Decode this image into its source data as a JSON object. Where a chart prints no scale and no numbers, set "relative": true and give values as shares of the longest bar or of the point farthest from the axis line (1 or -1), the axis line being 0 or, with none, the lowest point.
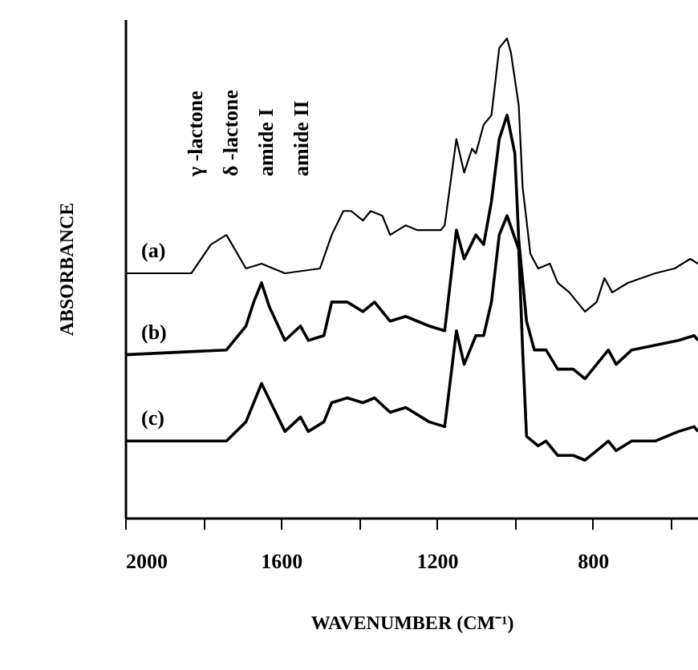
{
  "chart_data": {
    "type": "line",
    "xlabel": "WAVENUMBER (CM⁻¹)",
    "ylabel": "ABSORBANCE",
    "relative": true,
    "xlim": [
      2000,
      530
    ],
    "xticks": [
      2000,
      {
        "value": 1800,
        "label": null
      },
      1600,
      {
        "value": 1400,
        "label": null
      },
      1200,
      {
        "value": 1000,
        "label": null
      },
      800,
      {
        "value": 600,
        "label": null
      }
    ],
    "series": [
      {
        "name": "(a)",
        "color": "#000000",
        "x": [
          2000,
          1830,
          1780,
          1740,
          1690,
          1650,
          1590,
          1500,
          1470,
          1440,
          1420,
          1390,
          1370,
          1340,
          1320,
          1280,
          1250,
          1190,
          1180,
          1150,
          1130,
          1110,
          1100,
          1080,
          1060,
          1040,
          1020,
          1010,
          990,
          980,
          960,
          940,
          910,
          890,
          860,
          820,
          790,
          770,
          750,
          710,
          640,
          590,
          550,
          530
        ],
        "values": [
          0.51,
          0.51,
          0.57,
          0.59,
          0.52,
          0.53,
          0.51,
          0.52,
          0.59,
          0.64,
          0.64,
          0.62,
          0.64,
          0.63,
          0.59,
          0.61,
          0.6,
          0.6,
          0.61,
          0.79,
          0.72,
          0.77,
          0.76,
          0.82,
          0.84,
          0.98,
          1.0,
          0.97,
          0.86,
          0.69,
          0.55,
          0.52,
          0.53,
          0.49,
          0.47,
          0.43,
          0.45,
          0.5,
          0.47,
          0.49,
          0.51,
          0.52,
          0.54,
          0.53
        ]
      },
      {
        "name": "(b)",
        "color": "#000000",
        "x": [
          2000,
          1740,
          1690,
          1670,
          1650,
          1630,
          1590,
          1550,
          1530,
          1490,
          1470,
          1430,
          1390,
          1360,
          1320,
          1280,
          1220,
          1180,
          1150,
          1130,
          1100,
          1080,
          1060,
          1040,
          1020,
          1000,
          990,
          970,
          950,
          920,
          890,
          850,
          820,
          790,
          760,
          740,
          700,
          640,
          580,
          540,
          530
        ],
        "values": [
          0.34,
          0.35,
          0.4,
          0.45,
          0.49,
          0.44,
          0.37,
          0.4,
          0.37,
          0.38,
          0.45,
          0.45,
          0.43,
          0.45,
          0.41,
          0.42,
          0.4,
          0.39,
          0.6,
          0.54,
          0.59,
          0.57,
          0.66,
          0.79,
          0.84,
          0.76,
          0.58,
          0.41,
          0.35,
          0.35,
          0.31,
          0.31,
          0.29,
          0.32,
          0.35,
          0.32,
          0.35,
          0.36,
          0.37,
          0.38,
          0.37
        ]
      },
      {
        "name": "(c)",
        "color": "#000000",
        "x": [
          2000,
          1740,
          1690,
          1650,
          1620,
          1590,
          1550,
          1530,
          1490,
          1470,
          1430,
          1390,
          1360,
          1320,
          1280,
          1220,
          1180,
          1150,
          1130,
          1100,
          1080,
          1060,
          1040,
          1020,
          990,
          980,
          970,
          940,
          920,
          890,
          850,
          820,
          790,
          760,
          740,
          700,
          640,
          580,
          540,
          530
        ],
        "values": [
          0.16,
          0.16,
          0.2,
          0.28,
          0.23,
          0.18,
          0.21,
          0.18,
          0.2,
          0.24,
          0.25,
          0.24,
          0.25,
          0.22,
          0.23,
          0.2,
          0.19,
          0.39,
          0.32,
          0.38,
          0.38,
          0.45,
          0.59,
          0.63,
          0.56,
          0.35,
          0.17,
          0.15,
          0.16,
          0.13,
          0.13,
          0.12,
          0.14,
          0.16,
          0.14,
          0.16,
          0.16,
          0.18,
          0.19,
          0.18
        ]
      }
    ],
    "annotations": [
      "γ -lactone",
      "δ -lactone",
      "amide I",
      "amide II"
    ]
  }
}
